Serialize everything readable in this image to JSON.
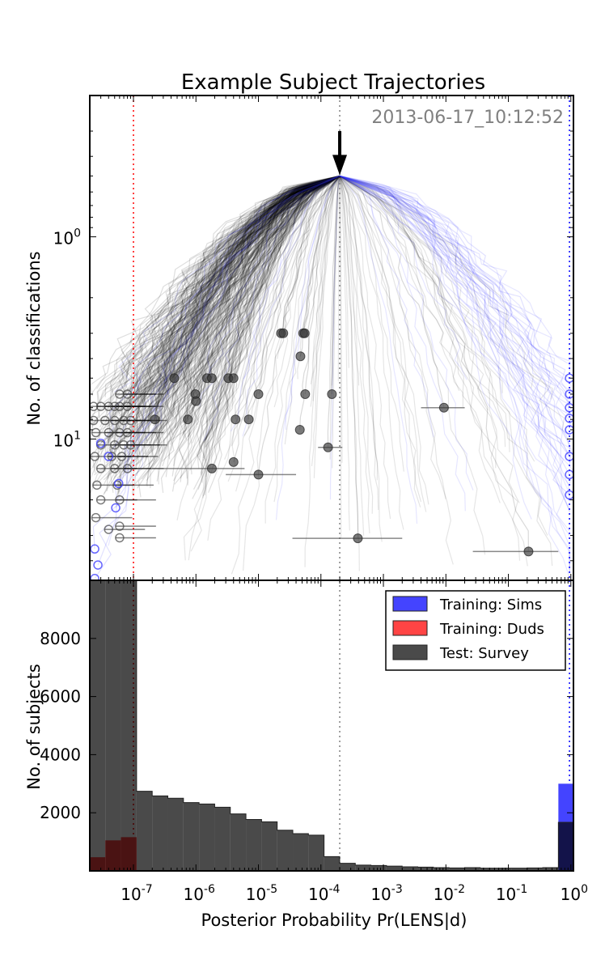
{
  "chart_data": [
    {
      "type": "line",
      "title": "Example Subject Trajectories",
      "ylabel": "No. of classifications",
      "xscale": "log",
      "yscale": "log",
      "y_inverted": true,
      "xlim": [
        2e-08,
        1.1
      ],
      "ylim": [
        0.2,
        50
      ],
      "y_tick_labels": [
        {
          "value": 1,
          "label": "10",
          "exp": "0"
        },
        {
          "value": 10,
          "label": "10",
          "exp": "1"
        }
      ],
      "annotation": "2013-06-17_10:12:52",
      "arrow_to": {
        "x": 0.0002,
        "y": 0.5
      },
      "trajectory_origin": {
        "x": 0.0002,
        "y": 0.5
      },
      "threshold_lines": [
        {
          "x": 1e-07,
          "color": "#ff0000"
        },
        {
          "x": 0.0002,
          "color": "#808080"
        },
        {
          "x": 0.95,
          "color": "#0000ff"
        }
      ],
      "colors": {
        "survey": "#000000",
        "sims": "#3333ff",
        "duds": "#ff0000"
      },
      "survey_points_filled": [
        {
          "x": 4.5e-07,
          "y": 5
        },
        {
          "x": 2.3e-05,
          "y": 3
        },
        {
          "x": 2.5e-05,
          "y": 3
        },
        {
          "x": 5.2e-05,
          "y": 3
        },
        {
          "x": 5.5e-05,
          "y": 3
        },
        {
          "x": 4.7e-05,
          "y": 3.9
        },
        {
          "x": 1.5e-06,
          "y": 5
        },
        {
          "x": 1.8e-06,
          "y": 5
        },
        {
          "x": 3.3e-06,
          "y": 5
        },
        {
          "x": 4e-06,
          "y": 5
        },
        {
          "x": 9.8e-07,
          "y": 6
        },
        {
          "x": 1e-05,
          "y": 6
        },
        {
          "x": 5.6e-05,
          "y": 6
        },
        {
          "x": 0.00015,
          "y": 6
        },
        {
          "x": 0.0093,
          "y": 7,
          "xlo": 0.004,
          "xhi": 0.02
        },
        {
          "x": 4.6e-05,
          "y": 9
        },
        {
          "x": 0.00013,
          "y": 11,
          "xlo": 9e-05,
          "xhi": 0.00022
        },
        {
          "x": 1.8e-06,
          "y": 14,
          "xlo": 2e-07,
          "xhi": 6e-06
        },
        {
          "x": 1e-05,
          "y": 15,
          "xlo": 3e-06,
          "xhi": 4e-05
        },
        {
          "x": 4e-06,
          "y": 13
        },
        {
          "x": 0.21,
          "y": 36,
          "xlo": 0.027,
          "xhi": 0.63
        },
        {
          "x": 0.00039,
          "y": 31,
          "xlo": 3.5e-05,
          "xhi": 0.002
        },
        {
          "x": 7.4e-07,
          "y": 8
        },
        {
          "x": 4.3e-06,
          "y": 8
        },
        {
          "x": 7e-06,
          "y": 8
        },
        {
          "x": 2.2e-07,
          "y": 8
        },
        {
          "x": 1e-06,
          "y": 6.5
        }
      ],
      "survey_points_open": [
        {
          "x": 6e-08,
          "y": 6
        },
        {
          "x": 8e-08,
          "y": 6
        },
        {
          "x": 2.3e-08,
          "y": 6.9
        },
        {
          "x": 3e-08,
          "y": 6.9
        },
        {
          "x": 4e-08,
          "y": 6.9
        },
        {
          "x": 5e-08,
          "y": 6.9
        },
        {
          "x": 6e-08,
          "y": 6.9
        },
        {
          "x": 8e-08,
          "y": 6.9
        },
        {
          "x": 2.3e-08,
          "y": 8.1
        },
        {
          "x": 3.5e-08,
          "y": 8.1
        },
        {
          "x": 5e-08,
          "y": 8.1
        },
        {
          "x": 7e-08,
          "y": 8.1
        },
        {
          "x": 9e-08,
          "y": 8.1
        },
        {
          "x": 2.5e-08,
          "y": 9.3
        },
        {
          "x": 4e-08,
          "y": 9.3
        },
        {
          "x": 6e-08,
          "y": 9.3
        },
        {
          "x": 8e-08,
          "y": 9.3
        },
        {
          "x": 3e-08,
          "y": 10.7
        },
        {
          "x": 5e-08,
          "y": 10.7
        },
        {
          "x": 7e-08,
          "y": 10.7
        },
        {
          "x": 9e-08,
          "y": 10.7
        },
        {
          "x": 2.4e-08,
          "y": 12.2
        },
        {
          "x": 4.5e-08,
          "y": 12.2
        },
        {
          "x": 6.5e-08,
          "y": 12.2
        },
        {
          "x": 3e-08,
          "y": 14
        },
        {
          "x": 5e-08,
          "y": 14
        },
        {
          "x": 8e-08,
          "y": 14
        },
        {
          "x": 2.6e-08,
          "y": 16.9
        },
        {
          "x": 5.5e-08,
          "y": 16.9
        },
        {
          "x": 3e-08,
          "y": 20
        },
        {
          "x": 6e-08,
          "y": 20
        },
        {
          "x": 2.5e-08,
          "y": 24.5
        },
        {
          "x": 4e-08,
          "y": 28
        },
        {
          "x": 6e-08,
          "y": 30.8
        },
        {
          "x": 6e-08,
          "y": 27
        }
      ],
      "sims_points_open": [
        {
          "x": 0.95,
          "y": 5
        },
        {
          "x": 0.95,
          "y": 6
        },
        {
          "x": 0.95,
          "y": 7
        },
        {
          "x": 0.95,
          "y": 7.9
        },
        {
          "x": 0.95,
          "y": 9
        },
        {
          "x": 0.95,
          "y": 12.2
        },
        {
          "x": 0.95,
          "y": 15
        },
        {
          "x": 0.95,
          "y": 18.9
        },
        {
          "x": 2.7e-08,
          "y": 42
        },
        {
          "x": 2.4e-08,
          "y": 49
        },
        {
          "x": 5.2e-08,
          "y": 21.9
        },
        {
          "x": 5.8e-08,
          "y": 16.6
        },
        {
          "x": 4e-08,
          "y": 12.2
        },
        {
          "x": 2.4e-08,
          "y": 35
        },
        {
          "x": 3e-08,
          "y": 10.5
        }
      ]
    },
    {
      "type": "bar",
      "subtype": "stacked-overlay-histogram",
      "xlabel": "Posterior Probability Pr(LENS|d)",
      "ylabel": "No. of subjects",
      "xscale": "log",
      "xlim": [
        2e-08,
        1.1
      ],
      "ylim": [
        0,
        10000
      ],
      "y_ticks": [
        2000,
        4000,
        6000,
        8000
      ],
      "x_tick_labels": [
        {
          "value": 1e-07,
          "label": "10",
          "exp": "-7"
        },
        {
          "value": 1e-06,
          "label": "10",
          "exp": "-6"
        },
        {
          "value": 1e-05,
          "label": "10",
          "exp": "-5"
        },
        {
          "value": 0.0001,
          "label": "10",
          "exp": "-4"
        },
        {
          "value": 0.001,
          "label": "10",
          "exp": "-3"
        },
        {
          "value": 0.01,
          "label": "10",
          "exp": "-2"
        },
        {
          "value": 0.1,
          "label": "10",
          "exp": "-1"
        },
        {
          "value": 1,
          "label": "10",
          "exp": "0"
        }
      ],
      "bin_log10_start": -7.7,
      "bin_log10_width": 0.25,
      "series": [
        {
          "name": "Training: Sims",
          "color": "#4444ff",
          "values": [
            0,
            0,
            0,
            0,
            0,
            0,
            0,
            0,
            0,
            0,
            0,
            0,
            0,
            0,
            0,
            0,
            0,
            0,
            0,
            0,
            0,
            0,
            0,
            0,
            0,
            0,
            0,
            0,
            0,
            0,
            3000
          ]
        },
        {
          "name": "Training: Duds",
          "color": "#ff4444",
          "values": [
            470,
            1050,
            1160,
            0,
            0,
            0,
            0,
            0,
            0,
            0,
            0,
            0,
            0,
            0,
            0,
            0,
            0,
            0,
            0,
            0,
            0,
            0,
            0,
            0,
            0,
            0,
            0,
            0,
            0,
            0,
            0
          ]
        },
        {
          "name": "Test: Survey",
          "color": "#4a4a4a",
          "values": [
            10000,
            10000,
            10000,
            2740,
            2580,
            2500,
            2350,
            2300,
            2190,
            1960,
            1770,
            1690,
            1400,
            1280,
            1230,
            490,
            260,
            200,
            185,
            165,
            140,
            130,
            110,
            100,
            110,
            95,
            95,
            95,
            100,
            110,
            1670
          ]
        }
      ],
      "legend_position": "top-right",
      "threshold_lines": [
        {
          "x": 1e-07,
          "color": "#ff0000"
        },
        {
          "x": 0.0002,
          "color": "#808080"
        },
        {
          "x": 0.95,
          "color": "#0000ff"
        }
      ]
    }
  ]
}
